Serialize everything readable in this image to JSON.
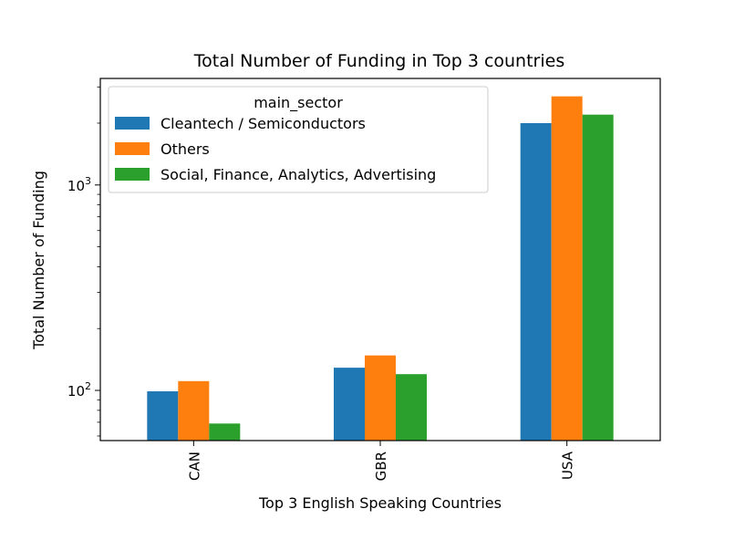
{
  "chart_data": {
    "type": "bar",
    "title": "Total Number of Funding in Top 3 countries",
    "xlabel": "Top 3 English Speaking Countries",
    "ylabel": "Total Number of Funding",
    "yscale": "log",
    "ylim": [
      57,
      3300
    ],
    "yticks": [
      {
        "value": 100,
        "base": "10",
        "exp": "2"
      },
      {
        "value": 1000,
        "base": "10",
        "exp": "3"
      }
    ],
    "grid": false,
    "categories": [
      "CAN",
      "GBR",
      "USA"
    ],
    "legend": {
      "title": "main_sector",
      "placement": "upper left"
    },
    "series": [
      {
        "name": "Cleantech / Semiconductors",
        "color": "#1f77b4",
        "values": [
          99,
          129,
          2000
        ]
      },
      {
        "name": "Others",
        "color": "#ff7f0e",
        "values": [
          111,
          148,
          2700
        ]
      },
      {
        "name": "Social, Finance, Analytics, Advertising",
        "color": "#2ca02c",
        "values": [
          69,
          120,
          2200
        ]
      }
    ]
  }
}
